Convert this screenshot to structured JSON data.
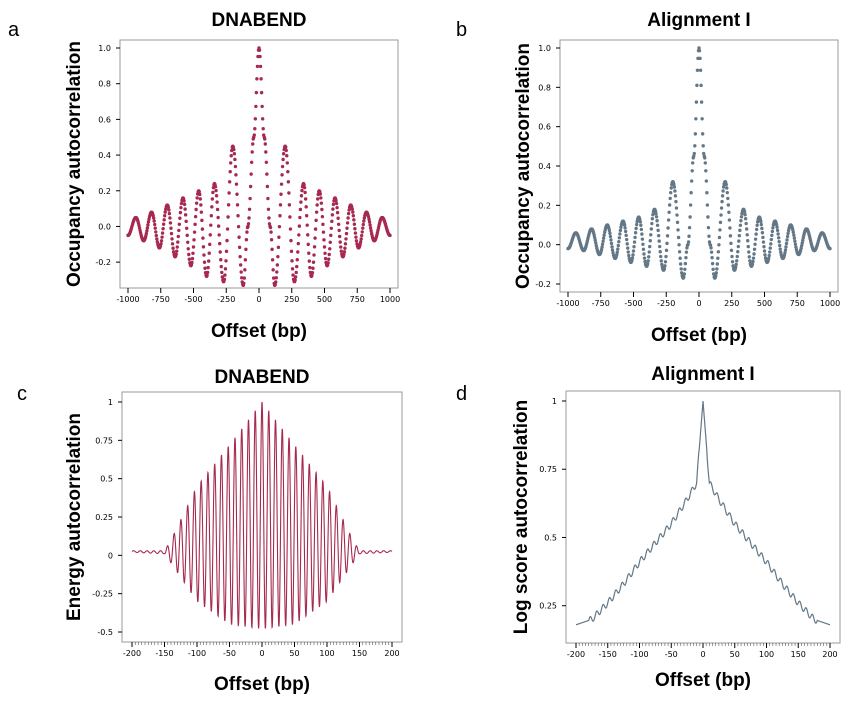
{
  "chart_data": [
    {
      "panel": "a",
      "type": "scatter",
      "title": "DNABEND",
      "xlabel": "Offset (bp)",
      "ylabel": "Occupancy autocorrelation",
      "color": "#a6294f",
      "marker": "dots",
      "xlim": [
        -1000,
        1000
      ],
      "ylim": [
        -0.3,
        1.0
      ],
      "xticks": [
        -1000,
        -750,
        -500,
        -250,
        0,
        250,
        500,
        750,
        1000
      ],
      "xtick_labels": [
        "-1000",
        "-750",
        "-500",
        "-250",
        "0",
        "250",
        "500",
        "750",
        "1000"
      ],
      "yticks": [
        -0.2,
        0.0,
        0.2,
        0.4,
        0.6,
        0.8,
        1.0
      ],
      "ytick_labels": [
        "-0.2",
        "0.0",
        "0.2",
        "0.4",
        "0.6",
        "0.8",
        "1.0"
      ],
      "grid": false,
      "series": [
        {
          "name": "DNABEND",
          "x": [
            -1000,
            -940,
            -880,
            -820,
            -760,
            -700,
            -640,
            -580,
            -520,
            -460,
            -400,
            -340,
            -270,
            -200,
            -120,
            -85,
            -40,
            0,
            40,
            85,
            120,
            200,
            270,
            340,
            400,
            460,
            520,
            580,
            640,
            700,
            760,
            820,
            880,
            940,
            1000
          ],
          "y": [
            -0.05,
            0.05,
            -0.08,
            0.08,
            -0.12,
            0.12,
            -0.17,
            0.16,
            -0.22,
            0.2,
            -0.28,
            0.24,
            -0.31,
            0.45,
            -0.33,
            0.0,
            0.5,
            1.0,
            0.5,
            0.0,
            -0.33,
            0.45,
            -0.31,
            0.24,
            -0.28,
            0.2,
            -0.22,
            0.16,
            -0.17,
            0.12,
            -0.12,
            0.08,
            -0.08,
            0.05,
            -0.05
          ]
        }
      ]
    },
    {
      "panel": "b",
      "type": "scatter",
      "title": "Alignment I",
      "xlabel": "Offset (bp)",
      "ylabel": "Occupancy autocorrelation",
      "color": "#637786",
      "marker": "dots",
      "xlim": [
        -1000,
        1000
      ],
      "ylim": [
        -0.2,
        1.0
      ],
      "xticks": [
        -1000,
        -750,
        -500,
        -250,
        0,
        250,
        500,
        750,
        1000
      ],
      "xtick_labels": [
        "-1000",
        "-750",
        "-500",
        "-250",
        "0",
        "250",
        "500",
        "750",
        "1000"
      ],
      "yticks": [
        -0.2,
        0.0,
        0.2,
        0.4,
        0.6,
        0.8,
        1.0
      ],
      "ytick_labels": [
        "-0.2",
        "0.0",
        "0.2",
        "0.4",
        "0.6",
        "0.8",
        "1.0"
      ],
      "grid": false,
      "series": [
        {
          "name": "Alignment I",
          "x": [
            -1000,
            -940,
            -880,
            -820,
            -760,
            -700,
            -640,
            -580,
            -520,
            -460,
            -400,
            -340,
            -270,
            -200,
            -120,
            -85,
            -40,
            0,
            40,
            85,
            120,
            200,
            270,
            340,
            400,
            460,
            520,
            580,
            640,
            700,
            760,
            820,
            880,
            940,
            1000
          ],
          "y": [
            -0.02,
            0.06,
            -0.03,
            0.08,
            -0.05,
            0.1,
            -0.07,
            0.12,
            -0.09,
            0.14,
            -0.11,
            0.18,
            -0.13,
            0.32,
            -0.17,
            0.0,
            0.45,
            1.0,
            0.45,
            0.0,
            -0.17,
            0.32,
            -0.13,
            0.18,
            -0.11,
            0.14,
            -0.09,
            0.12,
            -0.07,
            0.1,
            -0.05,
            0.08,
            -0.03,
            0.06,
            -0.02
          ]
        }
      ]
    },
    {
      "panel": "c",
      "type": "line",
      "title": "DNABEND",
      "xlabel": "Offset (bp)",
      "ylabel": "Energy autocorrelation",
      "color": "#a6294f",
      "xlim": [
        -200,
        200
      ],
      "ylim": [
        -0.5,
        1.0
      ],
      "xticks": [
        -200,
        -150,
        -100,
        -50,
        0,
        50,
        100,
        150,
        200
      ],
      "xtick_labels": [
        "-200",
        "-150",
        "-100",
        "-50",
        "0",
        "50",
        "100",
        "150",
        "200"
      ],
      "yticks": [
        -0.5,
        -0.25,
        0,
        0.25,
        0.5,
        0.75,
        1
      ],
      "ytick_labels": [
        "-0.5",
        "-0.25",
        "0",
        "0.25",
        "0.5",
        "0.75",
        "1"
      ],
      "grid": false,
      "description_of_series": "damped oscillation, period ~10 bp, envelope peak 1 at offset 0, decaying to ~0.02 beyond +/-150 bp",
      "series": [
        {
          "name": "DNABEND",
          "envelope_x": [
            -200,
            -150,
            -140,
            -100,
            -50,
            0,
            50,
            100,
            140,
            150,
            200
          ],
          "envelope_upper": [
            0.03,
            0.03,
            0.1,
            0.45,
            0.72,
            1.0,
            0.72,
            0.45,
            0.1,
            0.03,
            0.03
          ],
          "envelope_lower": [
            0.02,
            0.01,
            -0.05,
            -0.3,
            -0.45,
            -0.48,
            -0.45,
            -0.3,
            -0.05,
            0.01,
            0.02
          ],
          "period_bp": 10.4
        }
      ]
    },
    {
      "panel": "d",
      "type": "line",
      "title": "Alignment I",
      "xlabel": "Offset (bp)",
      "ylabel": "Log score autocorrelation",
      "color": "#637786",
      "xlim": [
        -200,
        200
      ],
      "ylim": [
        0.15,
        1.0
      ],
      "xticks": [
        -200,
        -150,
        -100,
        -50,
        0,
        50,
        100,
        150,
        200
      ],
      "xtick_labels": [
        "-200",
        "-150",
        "-100",
        "-50",
        "0",
        "50",
        "100",
        "150",
        "200"
      ],
      "yticks": [
        0.25,
        0.5,
        0.75,
        1
      ],
      "ytick_labels": [
        "0.25",
        "0.5",
        "0.75",
        "1"
      ],
      "grid": false,
      "series": [
        {
          "name": "Alignment I",
          "x": [
            -200,
            -175,
            -150,
            -125,
            -100,
            -75,
            -50,
            -25,
            -10,
            0,
            10,
            25,
            50,
            75,
            100,
            125,
            150,
            175,
            200
          ],
          "y": [
            0.18,
            0.2,
            0.26,
            0.33,
            0.41,
            0.48,
            0.55,
            0.64,
            0.7,
            1.0,
            0.7,
            0.64,
            0.55,
            0.48,
            0.41,
            0.33,
            0.26,
            0.2,
            0.18
          ]
        }
      ]
    }
  ]
}
